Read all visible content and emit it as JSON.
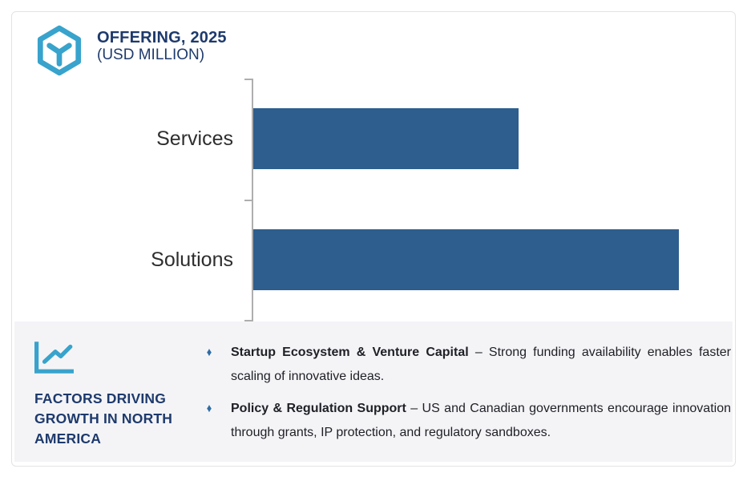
{
  "colors": {
    "accent_cyan": "#38a3cc",
    "navy": "#1e3a6c",
    "bar_blue": "#2d5e8d",
    "axis_gray": "#aeaeae",
    "panel_bg": "#f4f4f7",
    "card_border": "#e3e3e7",
    "bullet_diamond_blue": "#2e6da6"
  },
  "header": {
    "title": "OFFERING, 2025",
    "subtitle": "(USD MILLION)",
    "icon": "hexagon-package-icon"
  },
  "chart_data": {
    "type": "bar",
    "orientation": "horizontal",
    "title": "OFFERING, 2025 (USD MILLION)",
    "units": "USD Million",
    "categories": [
      "Services",
      "Solutions"
    ],
    "values": [
      62.3,
      100
    ],
    "value_axis_labeled": false,
    "xlabel": "",
    "ylabel": "",
    "grid": false,
    "legend": false,
    "bar_color": "#2d5e8d"
  },
  "factors": {
    "icon": "line-chart-icon",
    "heading": "FACTORS DRIVING GROWTH IN NORTH AMERICA",
    "bullet_glyph": "♦",
    "bullets": [
      {
        "bold": "Startup Ecosystem & Venture Capital",
        "rest": "– Strong funding availability enables faster scaling of innovative ideas."
      },
      {
        "bold": "Policy & Regulation Support",
        "rest": "– US and Canadian governments encourage innovation through grants, IP protection, and regulatory sandboxes."
      }
    ]
  }
}
